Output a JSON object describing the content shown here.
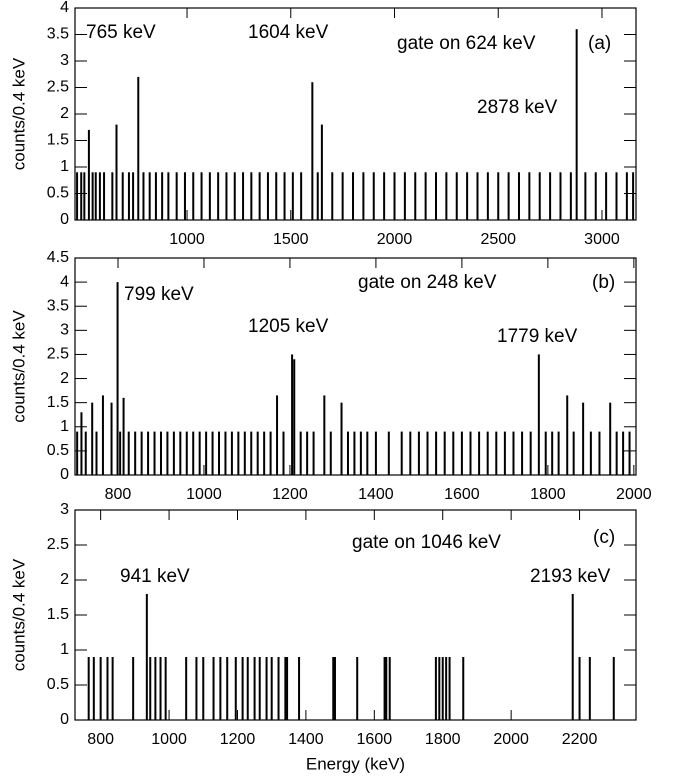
{
  "chart_data": [
    {
      "type": "spike",
      "ylabel": "counts/0.4 keV",
      "annotations": [
        "765 keV",
        "1604 keV",
        "gate on 624 keV",
        "(a)",
        "2878 keV"
      ],
      "xlim": [
        460,
        3164
      ],
      "ylim": [
        0,
        4
      ],
      "xticks": [
        1000,
        1500,
        2000,
        2500,
        3000
      ],
      "yticks": [
        0,
        0.5,
        1,
        1.5,
        2,
        2.5,
        3,
        3.5,
        4
      ],
      "color": "#000000",
      "x": [
        470,
        490,
        505,
        527,
        545,
        560,
        580,
        600,
        640,
        660,
        690,
        720,
        740,
        765,
        790,
        820,
        850,
        880,
        910,
        950,
        990,
        1030,
        1070,
        1110,
        1150,
        1190,
        1230,
        1270,
        1310,
        1350,
        1390,
        1430,
        1470,
        1510,
        1550,
        1604,
        1630,
        1650,
        1700,
        1750,
        1800,
        1850,
        1900,
        1950,
        2000,
        2050,
        2100,
        2150,
        2200,
        2250,
        2300,
        2350,
        2400,
        2450,
        2500,
        2550,
        2600,
        2650,
        2700,
        2750,
        2800,
        2850,
        2878,
        2920,
        2970,
        3020,
        3070,
        3120,
        3150
      ],
      "values": [
        0.9,
        0.9,
        0.9,
        1.7,
        0.9,
        0.9,
        0.9,
        0.9,
        0.9,
        1.8,
        0.9,
        0.9,
        0.9,
        2.7,
        0.9,
        0.9,
        0.9,
        0.9,
        0.9,
        0.9,
        0.9,
        0.9,
        0.9,
        0.9,
        0.9,
        0.9,
        0.9,
        0.9,
        0.9,
        0.9,
        0.9,
        0.9,
        0.9,
        0.9,
        0.9,
        2.6,
        0.9,
        1.8,
        0.9,
        0.9,
        0.9,
        0.9,
        0.9,
        0.9,
        0.9,
        0.9,
        0.9,
        0.9,
        0.9,
        0.9,
        0.9,
        0.9,
        0.9,
        0.9,
        0.9,
        0.9,
        0.9,
        0.9,
        0.9,
        0.9,
        0.9,
        0.9,
        3.6,
        0.9,
        0.9,
        0.9,
        0.9,
        0.9,
        0.9
      ]
    },
    {
      "type": "spike",
      "ylabel": "counts/0.4 keV",
      "annotations": [
        "799 keV",
        "gate on 248 keV",
        "(b)",
        "1205 keV",
        "1779 keV"
      ],
      "xlim": [
        700,
        2005
      ],
      "ylim": [
        0,
        4.5
      ],
      "xticks": [
        800,
        1000,
        1200,
        1400,
        1600,
        1800,
        2000
      ],
      "yticks": [
        0,
        0.5,
        1,
        1.5,
        2,
        2.5,
        3,
        3.5,
        4,
        4.5
      ],
      "color": "#000000",
      "x": [
        705,
        715,
        725,
        740,
        750,
        765,
        785,
        799,
        805,
        813,
        825,
        840,
        855,
        870,
        885,
        900,
        915,
        930,
        945,
        960,
        975,
        990,
        1005,
        1020,
        1035,
        1050,
        1065,
        1080,
        1095,
        1110,
        1125,
        1140,
        1155,
        1170,
        1185,
        1205,
        1210,
        1225,
        1240,
        1255,
        1280,
        1295,
        1320,
        1335,
        1350,
        1365,
        1380,
        1400,
        1430,
        1460,
        1480,
        1500,
        1520,
        1540,
        1560,
        1580,
        1600,
        1620,
        1640,
        1660,
        1680,
        1700,
        1720,
        1740,
        1760,
        1779,
        1795,
        1810,
        1825,
        1845,
        1860,
        1882,
        1900,
        1920,
        1945,
        1960,
        1975,
        1990
      ],
      "values": [
        0.9,
        1.3,
        0.9,
        1.5,
        0.9,
        1.65,
        1.5,
        4.0,
        0.9,
        1.6,
        0.9,
        0.9,
        0.9,
        0.9,
        0.9,
        0.9,
        0.9,
        0.9,
        0.9,
        0.9,
        0.9,
        0.9,
        0.9,
        0.9,
        0.9,
        0.9,
        0.9,
        0.9,
        0.9,
        0.9,
        0.9,
        0.9,
        0.9,
        1.65,
        0.9,
        2.5,
        2.4,
        0.9,
        0.9,
        0.9,
        1.65,
        0.9,
        1.5,
        0.9,
        0.9,
        0.9,
        0.9,
        0.9,
        0.9,
        0.9,
        0.9,
        0.9,
        0.9,
        0.9,
        0.9,
        0.9,
        0.9,
        0.9,
        0.9,
        0.9,
        0.9,
        0.9,
        0.9,
        0.9,
        0.9,
        2.5,
        0.9,
        0.9,
        0.9,
        1.65,
        0.9,
        1.5,
        0.9,
        0.9,
        1.5,
        0.9,
        0.9,
        0.9
      ]
    },
    {
      "type": "spike",
      "ylabel": "counts/0.4 keV",
      "xlabel": "Energy (keV)",
      "annotations": [
        "gate on 1046 keV",
        "(c)",
        "941 keV",
        "2193 keV"
      ],
      "xlim": [
        725,
        2365
      ],
      "ylim": [
        0,
        3
      ],
      "xticks": [
        800,
        1000,
        1200,
        1400,
        1600,
        1800,
        2000,
        2200
      ],
      "yticks": [
        0,
        0.5,
        1,
        1.5,
        2,
        2.5,
        3
      ],
      "color": "#000000",
      "x": [
        765,
        780,
        800,
        820,
        835,
        895,
        935,
        945,
        960,
        975,
        990,
        1050,
        1080,
        1100,
        1130,
        1150,
        1170,
        1195,
        1215,
        1230,
        1250,
        1265,
        1285,
        1300,
        1320,
        1340,
        1345,
        1380,
        1480,
        1485,
        1550,
        1630,
        1635,
        1645,
        1780,
        1790,
        1800,
        1810,
        1820,
        1860,
        2180,
        2200,
        2230,
        2300
      ],
      "values": [
        0.9,
        0.9,
        0.9,
        0.9,
        0.9,
        0.9,
        1.8,
        0.9,
        0.9,
        0.9,
        0.9,
        0.9,
        0.9,
        0.9,
        0.9,
        0.9,
        0.9,
        0.9,
        0.9,
        0.9,
        0.9,
        0.9,
        0.9,
        0.9,
        0.9,
        0.9,
        0.9,
        0.9,
        0.9,
        0.9,
        0.9,
        0.9,
        0.9,
        0.9,
        0.9,
        0.9,
        0.9,
        0.9,
        0.9,
        0.9,
        1.8,
        0.9,
        0.9,
        0.9
      ]
    }
  ]
}
